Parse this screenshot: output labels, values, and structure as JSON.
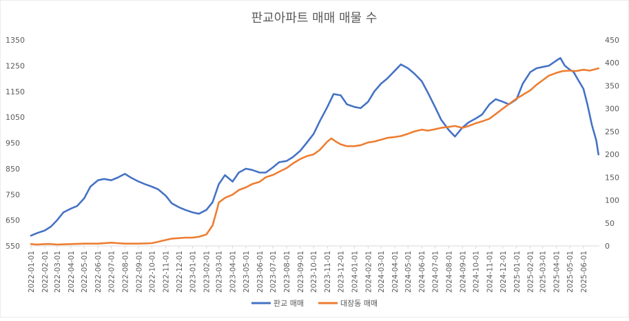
{
  "chart_data": {
    "type": "line",
    "title": "판교아파트 매매 매물 수",
    "y_left": {
      "ticks": [
        "550",
        "650",
        "750",
        "850",
        "950",
        "1050",
        "1150",
        "1250",
        "1350"
      ],
      "ylim": [
        550,
        1350
      ]
    },
    "y_right": {
      "ticks": [
        "0",
        "50",
        "100",
        "150",
        "200",
        "250",
        "300",
        "350",
        "400",
        "450"
      ],
      "ylim": [
        0,
        450
      ]
    },
    "x_ticks": [
      "2022-01-01",
      "2022-02-01",
      "2022-03-01",
      "2022-04-01",
      "2022-05-01",
      "2022-06-01",
      "2022-07-01",
      "2022-08-01",
      "2022-09-01",
      "2022-10-01",
      "2022-11-01",
      "2022-12-01",
      "2023-01-01",
      "2023-02-01",
      "2023-03-01",
      "2023-04-01",
      "2023-05-01",
      "2023-06-01",
      "2023-07-01",
      "2023-08-01",
      "2023-09-01",
      "2023-10-01",
      "2023-11-01",
      "2023-12-01",
      "2024-01-01",
      "2024-02-01",
      "2024-03-01",
      "2024-04-01",
      "2024-05-01",
      "2024-06-01",
      "2024-07-01",
      "2024-08-01",
      "2024-09-01",
      "2024-10-01",
      "2024-11-01",
      "2024-12-01",
      "2025-01-01",
      "2025-02-01",
      "2025-03-01",
      "2025-04-01",
      "2025-05-01",
      "2025-06-01"
    ],
    "grid": false,
    "legend_position": "bottom",
    "series": [
      {
        "name": "판교 매매",
        "axis": "left",
        "color": "#4472C4",
        "points": [
          [
            "2022-01-01",
            590
          ],
          [
            "2022-01-15",
            600
          ],
          [
            "2022-02-01",
            610
          ],
          [
            "2022-02-15",
            625
          ],
          [
            "2022-03-01",
            650
          ],
          [
            "2022-03-15",
            680
          ],
          [
            "2022-04-01",
            695
          ],
          [
            "2022-04-15",
            705
          ],
          [
            "2022-05-01",
            735
          ],
          [
            "2022-05-15",
            780
          ],
          [
            "2022-06-01",
            805
          ],
          [
            "2022-06-15",
            810
          ],
          [
            "2022-07-01",
            805
          ],
          [
            "2022-07-15",
            815
          ],
          [
            "2022-08-01",
            830
          ],
          [
            "2022-08-15",
            815
          ],
          [
            "2022-09-01",
            800
          ],
          [
            "2022-09-15",
            790
          ],
          [
            "2022-10-01",
            780
          ],
          [
            "2022-10-15",
            770
          ],
          [
            "2022-11-01",
            745
          ],
          [
            "2022-11-15",
            715
          ],
          [
            "2022-12-01",
            700
          ],
          [
            "2022-12-15",
            690
          ],
          [
            "2023-01-01",
            680
          ],
          [
            "2023-01-15",
            675
          ],
          [
            "2023-02-01",
            690
          ],
          [
            "2023-02-15",
            720
          ],
          [
            "2023-03-01",
            790
          ],
          [
            "2023-03-15",
            825
          ],
          [
            "2023-04-01",
            800
          ],
          [
            "2023-04-15",
            835
          ],
          [
            "2023-05-01",
            850
          ],
          [
            "2023-05-15",
            845
          ],
          [
            "2023-06-01",
            835
          ],
          [
            "2023-06-15",
            835
          ],
          [
            "2023-07-01",
            855
          ],
          [
            "2023-07-15",
            875
          ],
          [
            "2023-08-01",
            880
          ],
          [
            "2023-08-15",
            895
          ],
          [
            "2023-09-01",
            920
          ],
          [
            "2023-09-15",
            950
          ],
          [
            "2023-10-01",
            985
          ],
          [
            "2023-10-15",
            1035
          ],
          [
            "2023-11-01",
            1090
          ],
          [
            "2023-11-15",
            1140
          ],
          [
            "2023-12-01",
            1135
          ],
          [
            "2023-12-15",
            1100
          ],
          [
            "2024-01-01",
            1090
          ],
          [
            "2024-01-15",
            1085
          ],
          [
            "2024-02-01",
            1110
          ],
          [
            "2024-02-15",
            1150
          ],
          [
            "2024-03-01",
            1180
          ],
          [
            "2024-03-15",
            1200
          ],
          [
            "2024-04-01",
            1230
          ],
          [
            "2024-04-15",
            1255
          ],
          [
            "2024-05-01",
            1240
          ],
          [
            "2024-05-15",
            1220
          ],
          [
            "2024-06-01",
            1190
          ],
          [
            "2024-06-15",
            1145
          ],
          [
            "2024-07-01",
            1090
          ],
          [
            "2024-07-15",
            1040
          ],
          [
            "2024-08-01",
            1000
          ],
          [
            "2024-08-15",
            975
          ],
          [
            "2024-09-01",
            1010
          ],
          [
            "2024-09-15",
            1030
          ],
          [
            "2024-10-01",
            1045
          ],
          [
            "2024-10-15",
            1060
          ],
          [
            "2024-11-01",
            1100
          ],
          [
            "2024-11-15",
            1120
          ],
          [
            "2024-12-01",
            1110
          ],
          [
            "2024-12-15",
            1100
          ],
          [
            "2025-01-01",
            1120
          ],
          [
            "2025-01-15",
            1180
          ],
          [
            "2025-02-01",
            1225
          ],
          [
            "2025-02-15",
            1240
          ],
          [
            "2025-03-01",
            1245
          ],
          [
            "2025-03-15",
            1250
          ],
          [
            "2025-04-01",
            1270
          ],
          [
            "2025-04-10",
            1280
          ],
          [
            "2025-04-20",
            1250
          ],
          [
            "2025-05-01",
            1235
          ],
          [
            "2025-05-10",
            1225
          ],
          [
            "2025-05-20",
            1195
          ],
          [
            "2025-06-01",
            1160
          ],
          [
            "2025-06-10",
            1100
          ],
          [
            "2025-06-20",
            1020
          ],
          [
            "2025-06-30",
            960
          ],
          [
            "2025-07-05",
            905
          ]
        ]
      },
      {
        "name": "대장동 매매",
        "axis": "right",
        "color": "#ED7D31",
        "points": [
          [
            "2022-01-01",
            4
          ],
          [
            "2022-01-15",
            3
          ],
          [
            "2022-02-01",
            4
          ],
          [
            "2022-02-15",
            4
          ],
          [
            "2022-03-01",
            3
          ],
          [
            "2022-04-01",
            4
          ],
          [
            "2022-05-01",
            5
          ],
          [
            "2022-06-01",
            5
          ],
          [
            "2022-07-01",
            7
          ],
          [
            "2022-07-15",
            6
          ],
          [
            "2022-08-01",
            5
          ],
          [
            "2022-09-01",
            5
          ],
          [
            "2022-10-01",
            6
          ],
          [
            "2022-10-15",
            9
          ],
          [
            "2022-11-01",
            13
          ],
          [
            "2022-11-15",
            16
          ],
          [
            "2022-12-01",
            17
          ],
          [
            "2022-12-15",
            18
          ],
          [
            "2023-01-01",
            18
          ],
          [
            "2023-01-15",
            20
          ],
          [
            "2023-02-01",
            25
          ],
          [
            "2023-02-15",
            45
          ],
          [
            "2023-02-25",
            80
          ],
          [
            "2023-03-01",
            95
          ],
          [
            "2023-03-15",
            105
          ],
          [
            "2023-04-01",
            112
          ],
          [
            "2023-04-15",
            122
          ],
          [
            "2023-05-01",
            128
          ],
          [
            "2023-05-15",
            135
          ],
          [
            "2023-06-01",
            140
          ],
          [
            "2023-06-15",
            150
          ],
          [
            "2023-07-01",
            155
          ],
          [
            "2023-07-15",
            162
          ],
          [
            "2023-08-01",
            170
          ],
          [
            "2023-08-15",
            180
          ],
          [
            "2023-09-01",
            190
          ],
          [
            "2023-09-15",
            196
          ],
          [
            "2023-10-01",
            200
          ],
          [
            "2023-10-15",
            210
          ],
          [
            "2023-11-01",
            228
          ],
          [
            "2023-11-10",
            235
          ],
          [
            "2023-11-20",
            228
          ],
          [
            "2023-12-01",
            222
          ],
          [
            "2023-12-15",
            218
          ],
          [
            "2024-01-01",
            218
          ],
          [
            "2024-01-15",
            220
          ],
          [
            "2024-02-01",
            226
          ],
          [
            "2024-02-15",
            228
          ],
          [
            "2024-03-01",
            232
          ],
          [
            "2024-03-15",
            236
          ],
          [
            "2024-04-01",
            238
          ],
          [
            "2024-04-15",
            240
          ],
          [
            "2024-05-01",
            245
          ],
          [
            "2024-05-15",
            250
          ],
          [
            "2024-06-01",
            254
          ],
          [
            "2024-06-15",
            252
          ],
          [
            "2024-07-01",
            255
          ],
          [
            "2024-07-15",
            258
          ],
          [
            "2024-08-01",
            260
          ],
          [
            "2024-08-15",
            262
          ],
          [
            "2024-09-01",
            258
          ],
          [
            "2024-09-15",
            262
          ],
          [
            "2024-10-01",
            268
          ],
          [
            "2024-10-15",
            272
          ],
          [
            "2024-11-01",
            278
          ],
          [
            "2024-11-15",
            288
          ],
          [
            "2024-12-01",
            300
          ],
          [
            "2024-12-15",
            310
          ],
          [
            "2025-01-01",
            322
          ],
          [
            "2025-01-15",
            330
          ],
          [
            "2025-02-01",
            340
          ],
          [
            "2025-02-15",
            352
          ],
          [
            "2025-03-01",
            362
          ],
          [
            "2025-03-15",
            372
          ],
          [
            "2025-04-01",
            378
          ],
          [
            "2025-04-15",
            382
          ],
          [
            "2025-05-01",
            383
          ],
          [
            "2025-05-15",
            382
          ],
          [
            "2025-06-01",
            385
          ],
          [
            "2025-06-15",
            383
          ],
          [
            "2025-07-05",
            388
          ]
        ]
      }
    ]
  }
}
